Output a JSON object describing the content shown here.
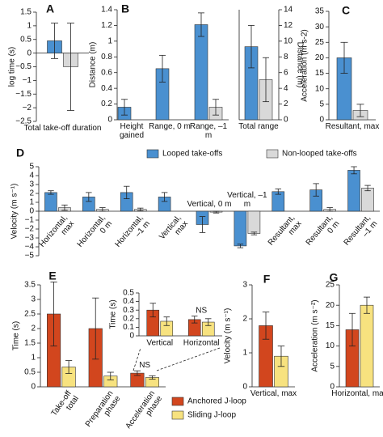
{
  "chart_data": [
    {
      "label": "A",
      "type": "bar",
      "ylabel": "log time (s)",
      "categories": [
        "Total take-off duration"
      ],
      "ylim": [
        -2.5,
        1.5
      ],
      "yticks": [
        {
          "value": -2.5,
          "label": "−2.5"
        },
        {
          "value": -2,
          "label": "−2"
        },
        {
          "value": -1.5,
          "label": "−1.5"
        },
        {
          "value": -1,
          "label": "−1"
        },
        {
          "value": -0.5,
          "label": "−0.5"
        },
        0,
        0.5,
        1,
        1.5
      ],
      "series": [
        {
          "color": "#4a90d0",
          "values": [
            0.45
          ],
          "errors": [
            0.65
          ]
        },
        {
          "color": "#d9d9d9",
          "values": [
            -0.5
          ],
          "errors": [
            1.6
          ]
        }
      ]
    },
    {
      "label": "B",
      "type": "bar",
      "ylabel": "Distance (m)",
      "y2label": "Distance (m)",
      "categories": [
        "Height gained",
        "Range, 0 m",
        "Range, –1 m",
        "Total range"
      ],
      "ylim": [
        0,
        1.4
      ],
      "yticks": [
        0,
        0.2,
        0.4,
        0.6,
        0.8,
        1,
        1.2,
        1.4
      ],
      "y2lim": [
        0,
        14
      ],
      "y2ticks": [
        0,
        2,
        4,
        6,
        8,
        10,
        12,
        14
      ],
      "series": [
        {
          "color": "#4a90d0",
          "values": [
            0.16,
            0.65,
            1.21,
            null
          ],
          "errors": [
            0.1,
            0.17,
            0.15,
            null
          ]
        },
        {
          "color": "#d9d9d9",
          "values": [
            null,
            null,
            0.16,
            null
          ],
          "errors": [
            null,
            null,
            0.1,
            null
          ]
        },
        {
          "color": "#4a90d0",
          "axis": "y2",
          "values": [
            null,
            null,
            null,
            9.3
          ],
          "errors": [
            null,
            null,
            null,
            2.7
          ]
        },
        {
          "color": "#d9d9d9",
          "axis": "y2",
          "values": [
            null,
            null,
            null,
            5.1
          ],
          "errors": [
            null,
            null,
            null,
            2.8
          ]
        }
      ]
    },
    {
      "label": "C",
      "type": "bar",
      "ylabel": "Acceleration (m s-2)",
      "categories": [
        "Resultant, max"
      ],
      "ylim": [
        0,
        35
      ],
      "yticks": [
        0,
        5,
        10,
        15,
        20,
        25,
        30,
        35
      ],
      "series": [
        {
          "color": "#4a90d0",
          "values": [
            20
          ],
          "errors": [
            5
          ]
        },
        {
          "color": "#d9d9d9",
          "values": [
            3
          ],
          "errors": [
            2
          ]
        }
      ]
    },
    {
      "label": "D",
      "type": "bar",
      "ylabel": "Velocity (m s⁻¹)",
      "categories": [
        "Horizontal, max",
        "Horizontal, 0 m",
        "Horizontal, –1 m",
        "Vertical, max",
        "Vertical, 0 m",
        "Vertical, –1 m",
        "Resultant, max",
        "Resultant, 0 m",
        "Resultant, –1 m"
      ],
      "ylim": [
        -5,
        5
      ],
      "yticks": [
        {
          "value": -5,
          "label": "−5"
        },
        {
          "value": -4,
          "label": "−4"
        },
        {
          "value": -3,
          "label": "−3"
        },
        {
          "value": -2,
          "label": "−2"
        },
        {
          "value": -1,
          "label": "−1"
        },
        0,
        1,
        2,
        3,
        4,
        5
      ],
      "series": [
        {
          "name": "Looped take-offs",
          "color": "#4a90d0",
          "values": [
            2.1,
            1.6,
            2.1,
            1.6,
            -1.5,
            -3.9,
            2.2,
            2.4,
            4.6
          ],
          "errors": [
            0.2,
            0.5,
            0.7,
            0.5,
            0.9,
            0.2,
            0.3,
            0.7,
            0.4
          ]
        },
        {
          "name": "Non-looped take-offs",
          "color": "#d9d9d9",
          "values": [
            0.4,
            0.2,
            0.2,
            null,
            -0.1,
            -2.5,
            null,
            0.2,
            2.6
          ],
          "errors": [
            0.3,
            0.2,
            0.15,
            null,
            0.1,
            0.15,
            null,
            0.2,
            0.3
          ]
        }
      ]
    },
    {
      "label": "E",
      "type": "bar",
      "ylabel": "Time (s)",
      "categories": [
        "Take-off total",
        "Preparation phase",
        "Acceleration phase"
      ],
      "ylim": [
        0,
        3.5
      ],
      "yticks": [
        0,
        0.5,
        1,
        1.5,
        2,
        2.5,
        3,
        3.5
      ],
      "annotations": [
        "NS"
      ],
      "series": [
        {
          "name": "Anchored J-loop",
          "color": "#d2461e",
          "values": [
            2.5,
            2.0,
            0.47
          ],
          "errors": [
            1.1,
            1.05,
            0.08
          ]
        },
        {
          "name": "Sliding J-loop",
          "color": "#f7e27f",
          "values": [
            0.68,
            0.37,
            0.32
          ],
          "errors": [
            0.22,
            0.13,
            0.06
          ]
        }
      ],
      "inset": {
        "type": "bar",
        "ylabel": "Time (s)",
        "categories": [
          "Vertical",
          "Horizontal"
        ],
        "ylim": [
          0,
          0.5
        ],
        "yticks": [
          0,
          0.1,
          0.2,
          0.3,
          0.4,
          0.5
        ],
        "annotations": [
          "NS"
        ],
        "series": [
          {
            "color": "#d2461e",
            "values": [
              0.3,
              0.19
            ],
            "errors": [
              0.08,
              0.04
            ]
          },
          {
            "color": "#f7e27f",
            "values": [
              0.17,
              0.16
            ],
            "errors": [
              0.05,
              0.04
            ]
          }
        ]
      }
    },
    {
      "label": "F",
      "type": "bar",
      "ylabel": "Velocity (m s⁻¹)",
      "categories": [
        "Vertical, max"
      ],
      "ylim": [
        0,
        3
      ],
      "yticks": [
        0,
        1,
        2,
        3
      ],
      "series": [
        {
          "color": "#d2461e",
          "values": [
            1.8
          ],
          "errors": [
            0.4
          ]
        },
        {
          "color": "#f7e27f",
          "values": [
            0.9
          ],
          "errors": [
            0.3
          ]
        }
      ]
    },
    {
      "label": "G",
      "type": "bar",
      "ylabel": "Acceleration (m s⁻²)",
      "categories": [
        "Horizontal, max"
      ],
      "ylim": [
        0,
        25
      ],
      "yticks": [
        0,
        5,
        10,
        15,
        20,
        25
      ],
      "series": [
        {
          "color": "#d2461e",
          "values": [
            14
          ],
          "errors": [
            4
          ]
        },
        {
          "color": "#f7e27f",
          "values": [
            20
          ],
          "errors": [
            2
          ]
        }
      ]
    }
  ]
}
